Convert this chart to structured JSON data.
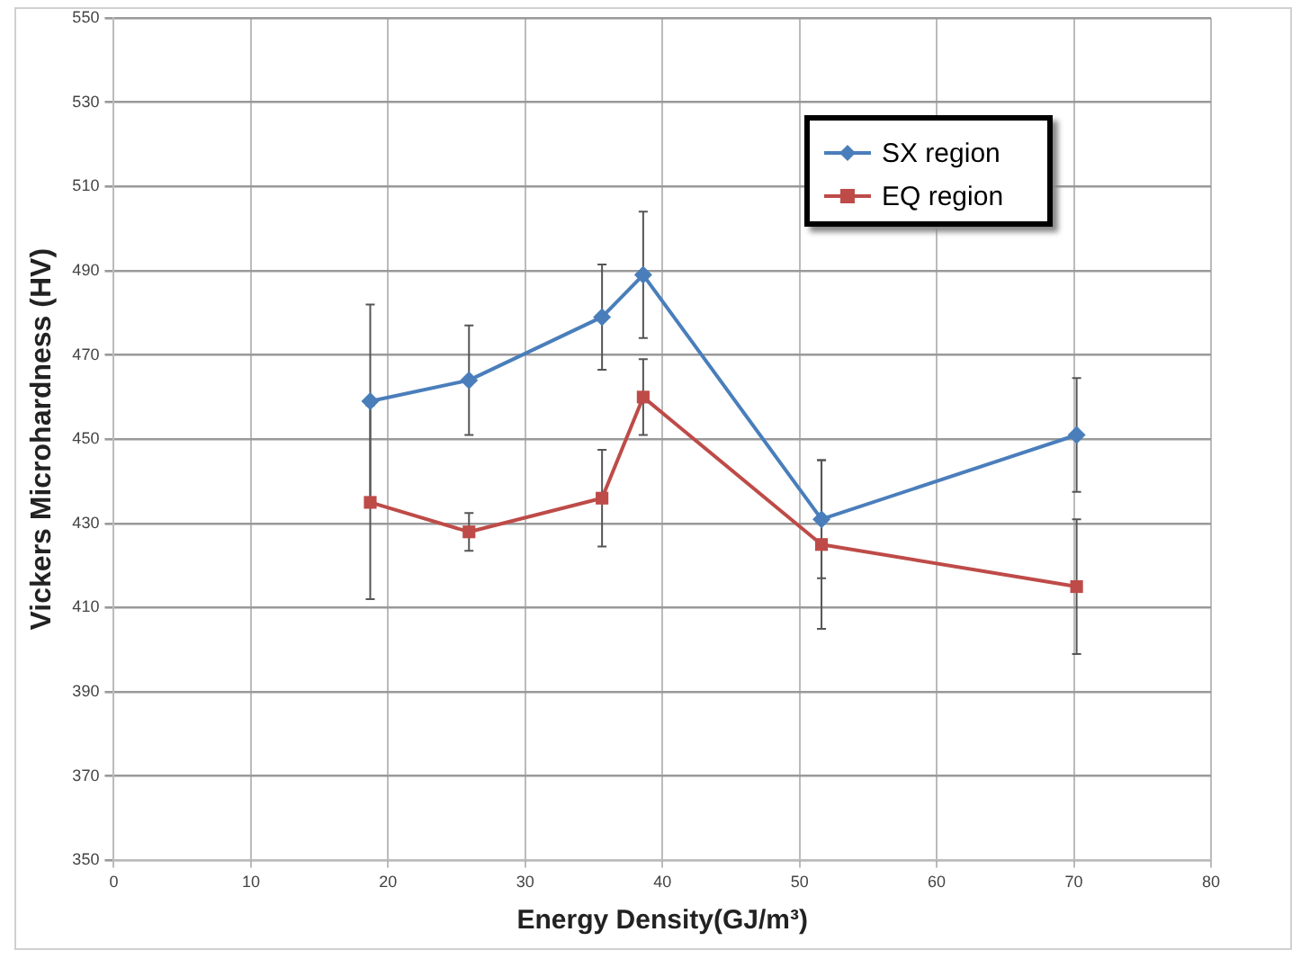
{
  "chart_data": {
    "type": "line",
    "xlabel": "Energy Density(GJ/m³)",
    "ylabel": "Vickers Microhardness (HV)",
    "x": [
      18.7,
      25.9,
      35.6,
      38.6,
      51.6,
      70.2
    ],
    "series": [
      {
        "name": "SX region",
        "color": "#4a7ebb",
        "marker": "diamond",
        "values": [
          459,
          464,
          479,
          489,
          431,
          451
        ],
        "errors": [
          23,
          13,
          12.5,
          15,
          14,
          13.5
        ]
      },
      {
        "name": "EQ region",
        "color": "#be4b48",
        "marker": "square",
        "values": [
          435,
          428,
          436,
          460,
          425,
          415
        ],
        "errors": [
          23,
          4.5,
          11.5,
          9,
          20,
          16
        ]
      }
    ],
    "xlim": [
      0,
      80
    ],
    "xticks": [
      0,
      10,
      20,
      30,
      40,
      50,
      60,
      70,
      80
    ],
    "ylim": [
      350,
      550
    ],
    "yticks": [
      350,
      370,
      390,
      410,
      430,
      450,
      470,
      490,
      510,
      530,
      550
    ],
    "grid": true,
    "legend": "top right"
  }
}
